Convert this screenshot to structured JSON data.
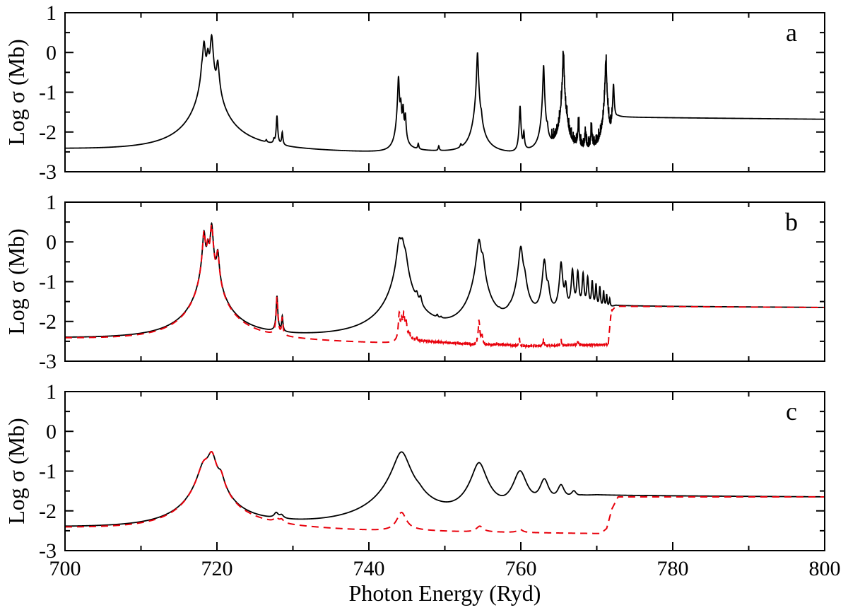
{
  "chart_data": [
    {
      "type": "line",
      "panel_label": "a",
      "xlim": [
        700,
        800
      ],
      "ylim": [
        -3,
        1
      ],
      "xticks": [
        700,
        720,
        740,
        760,
        780,
        800
      ],
      "yticks": [
        1,
        0,
        -1,
        -2,
        -3
      ],
      "ylabel": "Log σ (Mb)",
      "xlabel": "",
      "grid": false,
      "series": [
        {
          "color": "#000000",
          "dash": "solid",
          "background": [
            [
              700,
              -2.45
            ],
            [
              717.8,
              -2.52
            ],
            [
              718.4,
              -2.56
            ],
            [
              720.5,
              -2.45
            ],
            [
              722,
              -2.48
            ],
            [
              743,
              -2.56
            ],
            [
              743.6,
              -2.58
            ],
            [
              745,
              -2.5
            ],
            [
              753,
              -2.57
            ],
            [
              754,
              -2.59
            ],
            [
              756,
              -2.55
            ],
            [
              759.5,
              -2.62
            ],
            [
              760.5,
              -2.57
            ],
            [
              771.8,
              -2.6
            ],
            [
              772.2,
              -1.72
            ],
            [
              772.8,
              -1.63
            ],
            [
              800,
              -1.68
            ]
          ],
          "peaks": [
            [
              718.3,
              0.25,
              0.15
            ],
            [
              718.8,
              -0.05,
              0.15
            ],
            [
              719.3,
              0.42,
              0.15
            ],
            [
              720.1,
              -0.28,
              0.15
            ],
            [
              718.0,
              -0.9,
              0.1
            ],
            [
              727.5,
              -2.35,
              0.08
            ],
            [
              727.9,
              -1.62,
              0.08
            ],
            [
              728.6,
              -2.08,
              0.08
            ],
            [
              726.5,
              -2.4,
              0.08
            ],
            [
              743.9,
              -0.6,
              0.08
            ],
            [
              744.2,
              -1.3,
              0.08
            ],
            [
              744.5,
              -1.38,
              0.08
            ],
            [
              744.8,
              -1.6,
              0.08
            ],
            [
              746.5,
              -2.35,
              0.08
            ],
            [
              749.2,
              -2.4,
              0.08
            ],
            [
              752.1,
              -2.45,
              0.08
            ],
            [
              754.3,
              0.0,
              0.08
            ],
            [
              754.8,
              -1.9,
              0.08
            ],
            [
              759.9,
              -1.35,
              0.08
            ],
            [
              760.4,
              -2.05,
              0.08
            ],
            [
              763.0,
              -0.32,
              0.07
            ],
            [
              763.5,
              -2.1,
              0.07
            ],
            [
              765.6,
              -0.03,
              0.07
            ],
            [
              766.1,
              -2.1,
              0.07
            ],
            [
              767.6,
              -1.75,
              0.07
            ],
            [
              768.5,
              -2.05,
              0.07
            ],
            [
              769.3,
              -1.9,
              0.07
            ],
            [
              771.2,
              -0.2,
              0.07
            ],
            [
              772.2,
              -0.8,
              0.07
            ]
          ],
          "noise": [
            [
              764,
              772,
              0.28
            ]
          ]
        }
      ]
    },
    {
      "type": "line",
      "panel_label": "b",
      "xlim": [
        700,
        800
      ],
      "ylim": [
        -3,
        1
      ],
      "xticks": [
        700,
        720,
        740,
        760,
        780,
        800
      ],
      "yticks": [
        1,
        0,
        -1,
        -2,
        -3
      ],
      "ylabel": "Log σ (Mb)",
      "xlabel": "",
      "grid": false,
      "series": [
        {
          "color": "#000000",
          "dash": "solid",
          "background": [
            [
              700,
              -2.45
            ],
            [
              717.8,
              -2.52
            ],
            [
              718.4,
              -2.56
            ],
            [
              720.5,
              -2.45
            ],
            [
              722,
              -2.48
            ],
            [
              743,
              -2.5
            ],
            [
              743.6,
              -2.52
            ],
            [
              745,
              -2.42
            ],
            [
              753,
              -2.5
            ],
            [
              754,
              -2.52
            ],
            [
              760,
              -2.3
            ],
            [
              764,
              -2.1
            ],
            [
              768,
              -1.95
            ],
            [
              771.5,
              -1.7
            ],
            [
              772.5,
              -1.62
            ],
            [
              800,
              -1.65
            ]
          ],
          "peaks": [
            [
              718.3,
              0.25,
              0.15
            ],
            [
              718.8,
              -0.1,
              0.15
            ],
            [
              719.3,
              0.45,
              0.15
            ],
            [
              720.1,
              -0.28,
              0.15
            ],
            [
              727.9,
              -1.38,
              0.08
            ],
            [
              728.6,
              -1.95,
              0.08
            ],
            [
              744.0,
              0.0,
              0.25
            ],
            [
              744.4,
              -0.05,
              0.25
            ],
            [
              744.8,
              -0.5,
              0.25
            ],
            [
              746.3,
              -1.68,
              0.15
            ],
            [
              746.8,
              -1.7,
              0.15
            ],
            [
              749.0,
              -2.25,
              0.1
            ],
            [
              749.5,
              -2.35,
              0.1
            ],
            [
              754.5,
              0.05,
              0.25
            ],
            [
              755.0,
              -0.55,
              0.2
            ],
            [
              757.2,
              -2.3,
              0.1
            ],
            [
              758.5,
              -2.25,
              0.1
            ],
            [
              760.0,
              -0.12,
              0.22
            ],
            [
              760.5,
              -1.05,
              0.2
            ],
            [
              763.1,
              -0.45,
              0.18
            ],
            [
              763.6,
              -1.25,
              0.15
            ],
            [
              765.3,
              -0.52,
              0.15
            ],
            [
              765.9,
              -1.1,
              0.13
            ],
            [
              766.8,
              -0.7,
              0.12
            ],
            [
              767.5,
              -0.75,
              0.11
            ],
            [
              768.2,
              -0.8,
              0.1
            ],
            [
              768.8,
              -0.9,
              0.1
            ],
            [
              769.4,
              -1.0,
              0.09
            ],
            [
              769.9,
              -1.08,
              0.08
            ],
            [
              770.4,
              -1.15,
              0.08
            ],
            [
              770.9,
              -1.25,
              0.07
            ],
            [
              771.3,
              -1.35,
              0.07
            ],
            [
              771.7,
              -1.45,
              0.07
            ]
          ],
          "noise": []
        },
        {
          "color": "#e8000b",
          "dash": "10,7",
          "background": [
            [
              700,
              -2.45
            ],
            [
              717.8,
              -2.53
            ],
            [
              718.4,
              -2.58
            ],
            [
              720.5,
              -2.48
            ],
            [
              722,
              -2.5
            ],
            [
              743.5,
              -2.58
            ],
            [
              744,
              -2.62
            ],
            [
              744.8,
              -2.5
            ],
            [
              753,
              -2.6
            ],
            [
              754.3,
              -2.65
            ],
            [
              757,
              -2.6
            ],
            [
              760,
              -2.65
            ],
            [
              771.5,
              -2.6
            ],
            [
              771.9,
              -1.75
            ],
            [
              772.5,
              -1.62
            ],
            [
              800,
              -1.65
            ]
          ],
          "peaks": [
            [
              718.3,
              0.25,
              0.15
            ],
            [
              718.8,
              -0.1,
              0.15
            ],
            [
              719.3,
              0.42,
              0.15
            ],
            [
              720.1,
              -0.3,
              0.15
            ],
            [
              727.9,
              -1.4,
              0.08
            ],
            [
              728.6,
              -1.95,
              0.08
            ],
            [
              744.0,
              -1.8,
              0.1
            ],
            [
              744.3,
              -2.0,
              0.1
            ],
            [
              744.6,
              -1.8,
              0.1
            ],
            [
              744.9,
              -2.05,
              0.1
            ],
            [
              745.3,
              -2.3,
              0.1
            ],
            [
              746.3,
              -2.45,
              0.1
            ],
            [
              754.5,
              -2.0,
              0.1
            ],
            [
              754.9,
              -2.4,
              0.1
            ],
            [
              759.8,
              -2.45,
              0.08
            ],
            [
              763.0,
              -2.48,
              0.08
            ],
            [
              765.3,
              -2.5,
              0.08
            ],
            [
              767.5,
              -2.52,
              0.08
            ]
          ],
          "noise": [
            [
              744,
              772,
              0.06
            ]
          ]
        }
      ]
    },
    {
      "type": "line",
      "panel_label": "c",
      "xlim": [
        700,
        800
      ],
      "ylim": [
        -3,
        1
      ],
      "xticks": [
        700,
        720,
        740,
        760,
        780,
        800
      ],
      "yticks": [
        1,
        0,
        -1,
        -2,
        -3
      ],
      "ylabel": "Log σ (Mb)",
      "xlabel": "Photon Energy (Ryd)",
      "grid": false,
      "series": [
        {
          "color": "#000000",
          "dash": "solid",
          "background": [
            [
              700,
              -2.45
            ],
            [
              717.5,
              -2.52
            ],
            [
              721,
              -2.38
            ],
            [
              723,
              -2.42
            ],
            [
              743,
              -2.5
            ],
            [
              745,
              -2.3
            ],
            [
              752,
              -2.45
            ],
            [
              754,
              -2.45
            ],
            [
              757,
              -2.42
            ],
            [
              758,
              -2.45
            ],
            [
              760,
              -2.3
            ],
            [
              762,
              -2.2
            ],
            [
              764,
              -2.0
            ],
            [
              766,
              -1.8
            ],
            [
              768,
              -1.65
            ],
            [
              770,
              -1.62
            ],
            [
              800,
              -1.65
            ]
          ],
          "peaks": [
            [
              718.3,
              -0.9,
              0.7
            ],
            [
              719.3,
              -0.58,
              0.55
            ],
            [
              720.5,
              -1.3,
              0.4
            ],
            [
              727.8,
              -2.22,
              0.3
            ],
            [
              728.5,
              -2.3,
              0.3
            ],
            [
              744.3,
              -0.52,
              0.9
            ],
            [
              746.6,
              -2.05,
              0.5
            ],
            [
              749.2,
              -2.38,
              0.5
            ],
            [
              754.5,
              -0.8,
              0.8
            ],
            [
              759.9,
              -1.02,
              0.75
            ],
            [
              763.1,
              -1.25,
              0.55
            ],
            [
              765.3,
              -1.4,
              0.45
            ],
            [
              767.0,
              -1.55,
              0.35
            ]
          ],
          "noise": []
        },
        {
          "color": "#e8000b",
          "dash": "10,7",
          "background": [
            [
              700,
              -2.45
            ],
            [
              717.5,
              -2.53
            ],
            [
              721,
              -2.4
            ],
            [
              723,
              -2.44
            ],
            [
              743,
              -2.55
            ],
            [
              746,
              -2.52
            ],
            [
              753,
              -2.55
            ],
            [
              756,
              -2.55
            ],
            [
              760,
              -2.56
            ],
            [
              770.5,
              -2.58
            ],
            [
              771.3,
              -2.45
            ],
            [
              772,
              -1.95
            ],
            [
              772.8,
              -1.65
            ],
            [
              800,
              -1.65
            ]
          ],
          "peaks": [
            [
              718.3,
              -0.9,
              0.7
            ],
            [
              719.3,
              -0.58,
              0.55
            ],
            [
              720.5,
              -1.3,
              0.4
            ],
            [
              727.8,
              -2.3,
              0.3
            ],
            [
              728.5,
              -2.35,
              0.3
            ],
            [
              744.3,
              -2.05,
              0.6
            ],
            [
              754.6,
              -2.4,
              0.5
            ],
            [
              759.9,
              -2.48,
              0.4
            ]
          ],
          "noise": []
        }
      ]
    }
  ]
}
